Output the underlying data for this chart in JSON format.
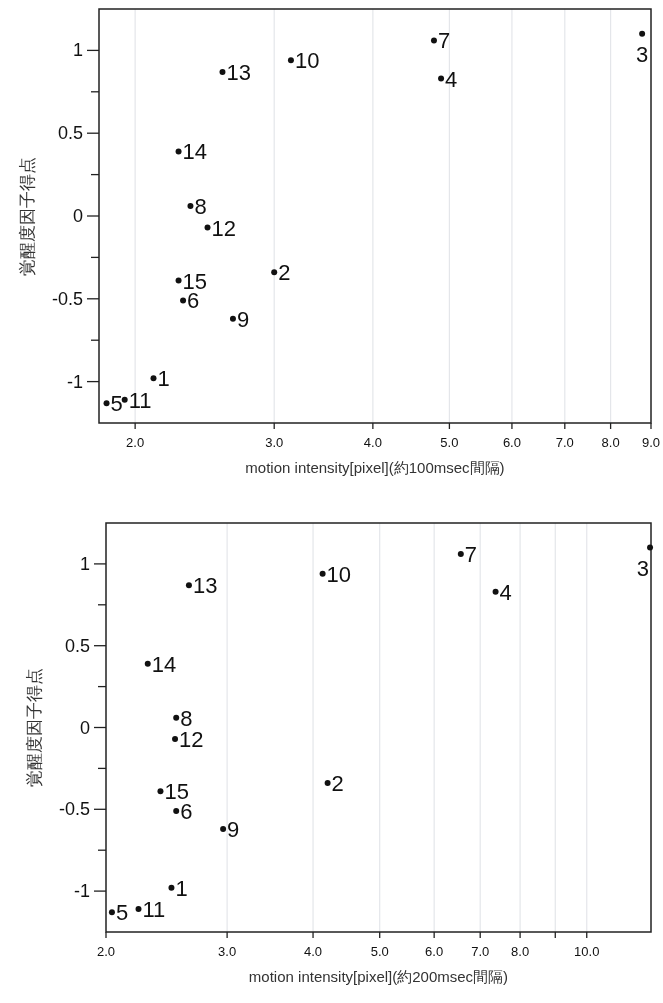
{
  "chart_data": [
    {
      "type": "scatter",
      "xlabel": "motion intensity[pixel](約100msec間隔)",
      "ylabel": "覚醒度因子得点",
      "log": "x",
      "grid": "x",
      "marker": "circle",
      "color": "#111111",
      "x": [
        2.11,
        3.0,
        8.77,
        4.88,
        1.84,
        2.3,
        4.78,
        2.35,
        2.66,
        3.15,
        1.94,
        2.47,
        2.58,
        2.27,
        2.27
      ],
      "values": [
        -0.98,
        -0.34,
        1.1,
        0.83,
        -1.13,
        -0.51,
        1.06,
        0.06,
        -0.62,
        0.94,
        -1.11,
        -0.07,
        0.87,
        0.39,
        -0.39
      ],
      "annotations": [
        {
          "text": "1",
          "x": 2.11,
          "y": -0.98
        },
        {
          "text": "2",
          "x": 3.0,
          "y": -0.34
        },
        {
          "text": "3",
          "x": 8.77,
          "y": 1.1
        },
        {
          "text": "4",
          "x": 4.88,
          "y": 0.83
        },
        {
          "text": "5",
          "x": 1.84,
          "y": -1.13
        },
        {
          "text": "6",
          "x": 2.3,
          "y": -0.51
        },
        {
          "text": "7",
          "x": 4.78,
          "y": 1.06
        },
        {
          "text": "8",
          "x": 2.35,
          "y": 0.06
        },
        {
          "text": "9",
          "x": 2.66,
          "y": -0.62
        },
        {
          "text": "10",
          "x": 3.15,
          "y": 0.94
        },
        {
          "text": "11",
          "x": 1.94,
          "y": -1.11
        },
        {
          "text": "12",
          "x": 2.47,
          "y": -0.07
        },
        {
          "text": "13",
          "x": 2.58,
          "y": 0.87
        },
        {
          "text": "14",
          "x": 2.27,
          "y": 0.39
        },
        {
          "text": "15",
          "x": 2.27,
          "y": -0.39
        }
      ],
      "xlim": [
        1.8,
        9.0
      ],
      "xticks": [
        {
          "value": 2,
          "label": "2.0"
        },
        {
          "value": 3,
          "label": "3.0"
        },
        {
          "value": 4,
          "label": "4.0"
        },
        {
          "value": 5,
          "label": "5.0"
        },
        {
          "value": 6,
          "label": "6.0"
        },
        {
          "value": 7,
          "label": "7.0"
        },
        {
          "value": 8,
          "label": "8.0"
        },
        {
          "value": 9,
          "label": "9.0"
        }
      ],
      "ylim": [
        -1.25,
        1.25
      ],
      "yticks": [
        -1,
        {
          "value": -0.75,
          "label": null
        },
        -0.5,
        {
          "value": -0.25,
          "label": null
        },
        0,
        {
          "value": 0.25,
          "label": null
        },
        0.5,
        {
          "value": 0.75,
          "label": null
        },
        1
      ]
    },
    {
      "type": "scatter",
      "xlabel": "motion intensity[pixel](約200msec間隔)",
      "ylabel": "覚醒度因子得点",
      "log": "x",
      "grid": "x",
      "marker": "circle",
      "color": "#111111",
      "x": [
        2.49,
        4.2,
        12.36,
        7.37,
        2.04,
        2.53,
        6.56,
        2.53,
        2.96,
        4.13,
        2.23,
        2.52,
        2.64,
        2.3,
        2.4
      ],
      "values": [
        -0.98,
        -0.34,
        1.1,
        0.83,
        -1.13,
        -0.51,
        1.06,
        0.06,
        -0.62,
        0.94,
        -1.11,
        -0.07,
        0.87,
        0.39,
        -0.39
      ],
      "annotations": [
        {
          "text": "1",
          "x": 2.49,
          "y": -0.98
        },
        {
          "text": "2",
          "x": 4.2,
          "y": -0.34
        },
        {
          "text": "3",
          "x": 12.36,
          "y": 1.1
        },
        {
          "text": "4",
          "x": 7.37,
          "y": 0.83
        },
        {
          "text": "5",
          "x": 2.04,
          "y": -1.13
        },
        {
          "text": "6",
          "x": 2.53,
          "y": -0.51
        },
        {
          "text": "7",
          "x": 6.56,
          "y": 1.06
        },
        {
          "text": "8",
          "x": 2.53,
          "y": 0.06
        },
        {
          "text": "9",
          "x": 2.96,
          "y": -0.62
        },
        {
          "text": "10",
          "x": 4.13,
          "y": 0.94
        },
        {
          "text": "11",
          "x": 2.23,
          "y": -1.11
        },
        {
          "text": "12",
          "x": 2.52,
          "y": -0.07
        },
        {
          "text": "13",
          "x": 2.64,
          "y": 0.87
        },
        {
          "text": "14",
          "x": 2.3,
          "y": 0.39
        },
        {
          "text": "15",
          "x": 2.4,
          "y": -0.39
        }
      ],
      "xlim": [
        2.0,
        12.4
      ],
      "xticks": [
        {
          "value": 2,
          "label": "2.0"
        },
        {
          "value": 3,
          "label": "3.0"
        },
        {
          "value": 4,
          "label": "4.0"
        },
        {
          "value": 5,
          "label": "5.0"
        },
        {
          "value": 6,
          "label": "6.0"
        },
        {
          "value": 7,
          "label": "7.0"
        },
        {
          "value": 8,
          "label": "8.0"
        },
        {
          "value": 9,
          "label": null
        },
        {
          "value": 10,
          "label": "10.0"
        }
      ],
      "ylim": [
        -1.25,
        1.25
      ],
      "yticks": [
        -1,
        {
          "value": -0.75,
          "label": null
        },
        -0.5,
        {
          "value": -0.25,
          "label": null
        },
        0,
        {
          "value": 0.25,
          "label": null
        },
        0.5,
        {
          "value": 0.75,
          "label": null
        },
        1
      ]
    }
  ]
}
